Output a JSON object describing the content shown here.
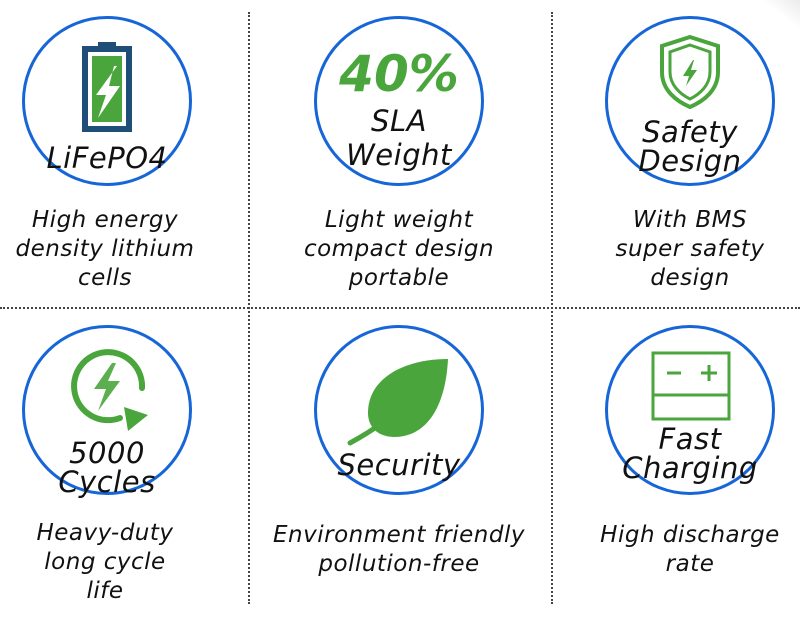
{
  "features": [
    {
      "circle_lines": [
        "LiFePO4"
      ],
      "caption_lines": [
        "High energy",
        "density lithium",
        "cells"
      ],
      "icon": "battery-charging-icon"
    },
    {
      "highlight": "40%",
      "circle_lines": [
        "SLA",
        "Weight"
      ],
      "caption_lines": [
        "Light weight",
        "compact design",
        "portable"
      ]
    },
    {
      "circle_lines": [
        "Safety",
        "Design"
      ],
      "caption_lines": [
        "With BMS",
        "super safety",
        "design"
      ],
      "icon": "shield-lightning-icon"
    },
    {
      "circle_lines": [
        "5000",
        "Cycles"
      ],
      "caption_lines": [
        "Heavy-duty",
        "long cycle",
        "life"
      ],
      "icon": "cycle-lightning-icon"
    },
    {
      "circle_lines": [
        "Security"
      ],
      "caption_lines": [
        "Environment friendly",
        "pollution-free"
      ],
      "icon": "leaf-icon"
    },
    {
      "circle_lines": [
        "Fast",
        "Charging"
      ],
      "caption_lines": [
        "High discharge",
        "rate"
      ],
      "icon": "battery-terminals-icon"
    }
  ],
  "colors": {
    "circle_border": "#1666d8",
    "accent_green": "#4aa63c",
    "battery_navy": "#1f4e79"
  }
}
